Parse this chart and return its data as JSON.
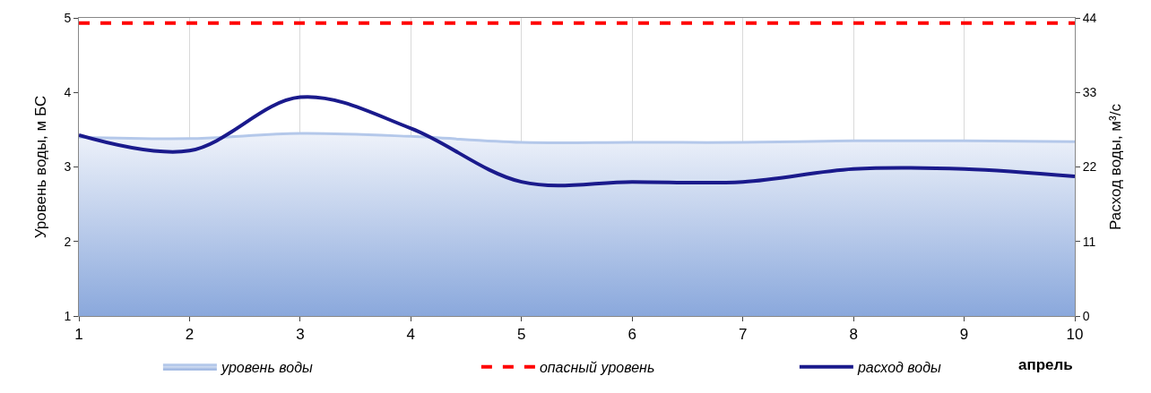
{
  "chart_data": {
    "type": "area",
    "xlabel": "апрель",
    "ylabel": "Уровень воды, м БС",
    "y2label": "Расход воды, м³/с",
    "x": [
      1,
      2,
      3,
      4,
      5,
      6,
      7,
      8,
      9,
      10
    ],
    "xlim": [
      1,
      10
    ],
    "xticks": [
      1,
      2,
      3,
      4,
      5,
      6,
      7,
      8,
      9,
      10
    ],
    "ylim": [
      1,
      5
    ],
    "yticks": [
      1,
      2,
      3,
      4,
      5
    ],
    "y2lim": [
      0,
      44
    ],
    "y2ticks": [
      0,
      11,
      22,
      33,
      44
    ],
    "grid": "x",
    "legend": "bottom",
    "series": [
      {
        "name": "уровень воды",
        "color": "#b4c8ea",
        "values": [
          3.4,
          3.38,
          3.45,
          3.41,
          3.33,
          3.33,
          3.33,
          3.35,
          3.35,
          3.34
        ]
      },
      {
        "name": "опасный уровень",
        "type": "line",
        "color": "#ff0000",
        "line_style": "dashed",
        "values": [
          4.93,
          4.93,
          4.93,
          4.93,
          4.93,
          4.93,
          4.93,
          4.93,
          4.93,
          4.93
        ]
      },
      {
        "name": "расход воды",
        "type": "line",
        "color": "#1a1a8c",
        "axis": "y2",
        "values": [
          26.7,
          24.4,
          32.3,
          27.7,
          19.8,
          19.8,
          19.8,
          21.7,
          21.7,
          20.6
        ]
      }
    ]
  }
}
